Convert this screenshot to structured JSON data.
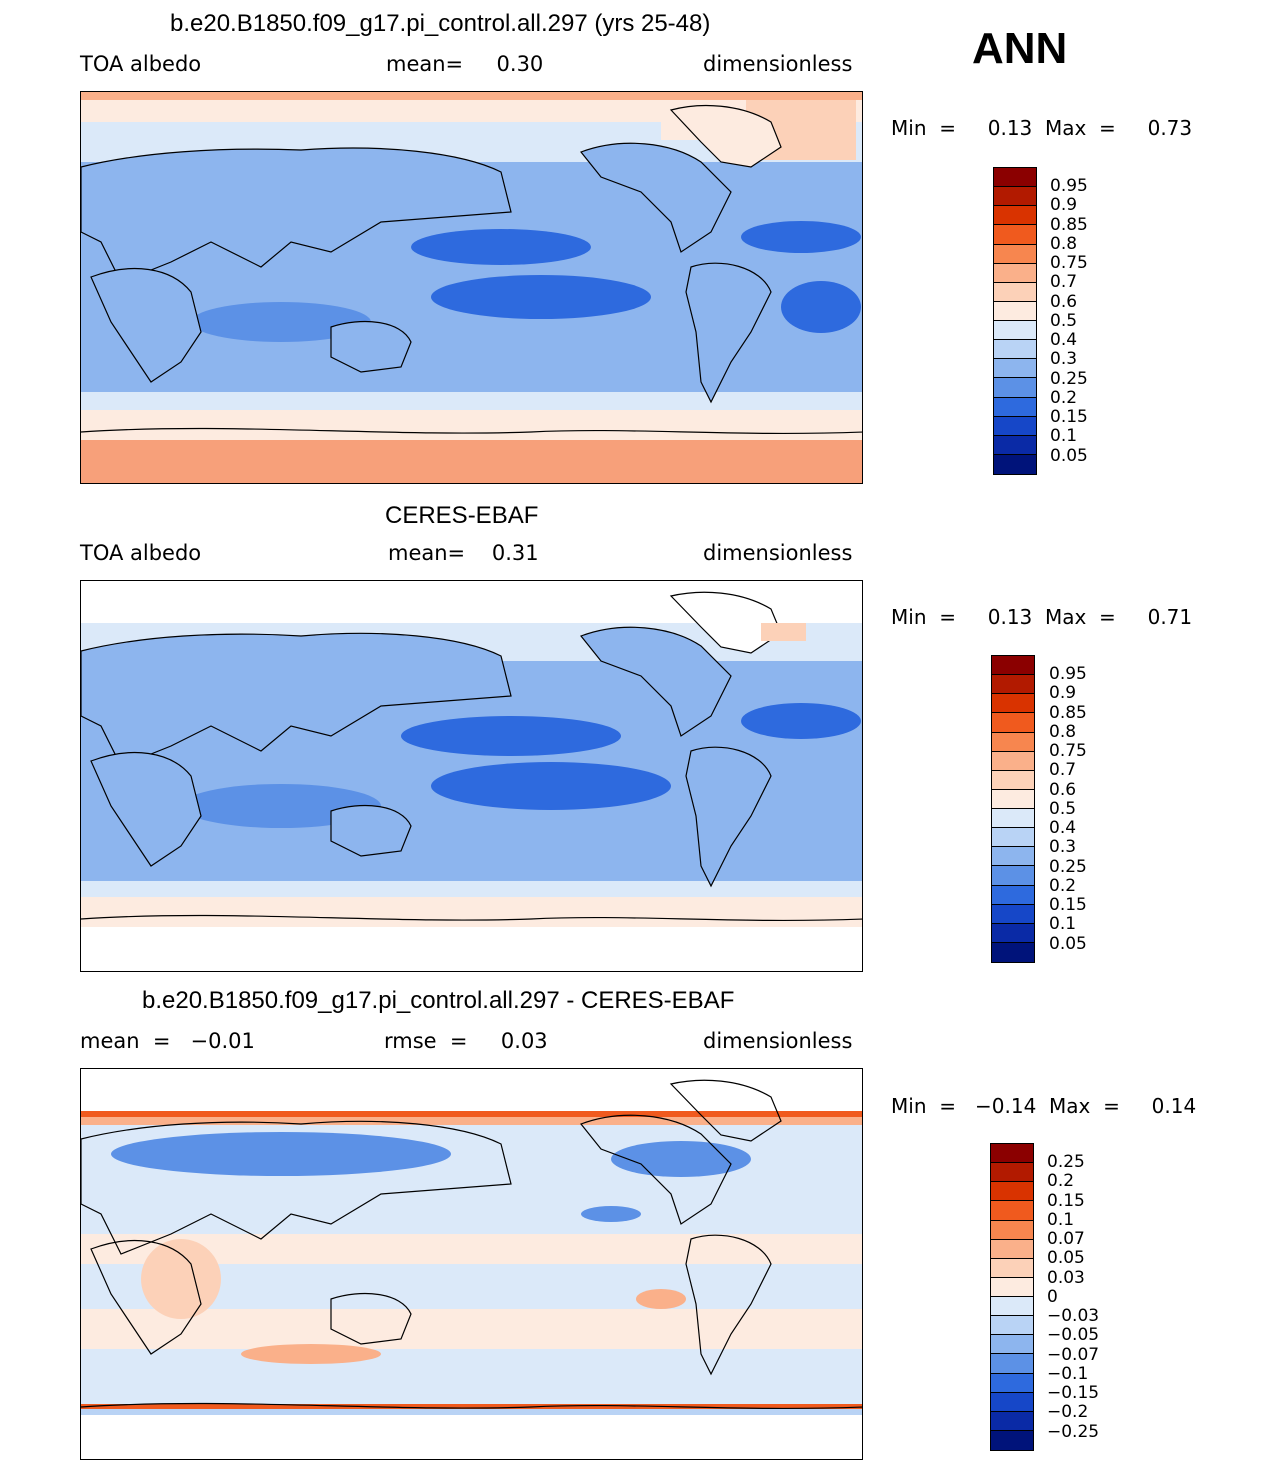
{
  "panels": [
    {
      "id": "model",
      "title": "b.e20.B1850.f09_g17.pi_control.all.297 (yrs 25-48)",
      "left_label": "TOA albedo",
      "center_label": "mean=     0.30",
      "right_label": "dimensionless",
      "min_max": "Min  =     0.13  Max  =     0.73",
      "colorbar": {
        "labels": [
          "0.95",
          "0.9",
          "0.85",
          "0.8",
          "0.75",
          "0.7",
          "0.6",
          "0.5",
          "0.4",
          "0.3",
          "0.25",
          "0.2",
          "0.15",
          "0.1",
          "0.05"
        ],
        "colors": [
          "#8b0000",
          "#b21a00",
          "#d93300",
          "#f05a1e",
          "#f7864f",
          "#fab08a",
          "#fcd1b8",
          "#fdebe0",
          "#dbe9f9",
          "#b9d3f5",
          "#8db5ee",
          "#5c91e6",
          "#2e6ade",
          "#1647c8",
          "#0a2aa6",
          "#00137a"
        ]
      }
    },
    {
      "id": "obs",
      "title": "CERES-EBAF",
      "left_label": "TOA albedo",
      "center_label": "mean=    0.31",
      "right_label": "dimensionless",
      "min_max": "Min  =     0.13  Max  =     0.71",
      "colorbar": {
        "labels": [
          "0.95",
          "0.9",
          "0.85",
          "0.8",
          "0.75",
          "0.7",
          "0.6",
          "0.5",
          "0.4",
          "0.3",
          "0.25",
          "0.2",
          "0.15",
          "0.1",
          "0.05"
        ],
        "colors": [
          "#8b0000",
          "#b21a00",
          "#d93300",
          "#f05a1e",
          "#f7864f",
          "#fab08a",
          "#fcd1b8",
          "#fdebe0",
          "#dbe9f9",
          "#b9d3f5",
          "#8db5ee",
          "#5c91e6",
          "#2e6ade",
          "#1647c8",
          "#0a2aa6",
          "#00137a"
        ]
      }
    },
    {
      "id": "diff",
      "title": "b.e20.B1850.f09_g17.pi_control.all.297 - CERES-EBAF",
      "left_label": "mean  =   −0.01",
      "center_label": "rmse  =     0.03",
      "right_label": "dimensionless",
      "min_max": "Min  =   −0.14  Max  =     0.14",
      "colorbar": {
        "labels": [
          "0.25",
          "0.2",
          "0.15",
          "0.1",
          "0.07",
          "0.05",
          "0.03",
          "0",
          "−0.03",
          "−0.05",
          "−0.07",
          "−0.1",
          "−0.15",
          "−0.2",
          "−0.25"
        ],
        "colors": [
          "#8b0000",
          "#b21a00",
          "#d93300",
          "#f05a1e",
          "#f7864f",
          "#fab08a",
          "#fcd1b8",
          "#fdebe0",
          "#dbe9f9",
          "#b9d3f5",
          "#8db5ee",
          "#5c91e6",
          "#2e6ade",
          "#1647c8",
          "#0a2aa6",
          "#00137a"
        ]
      }
    }
  ],
  "season": "ANN",
  "colors": {
    "ocean_low": "#2e6ade",
    "land": "#8db5ee",
    "coast": "#000000"
  }
}
